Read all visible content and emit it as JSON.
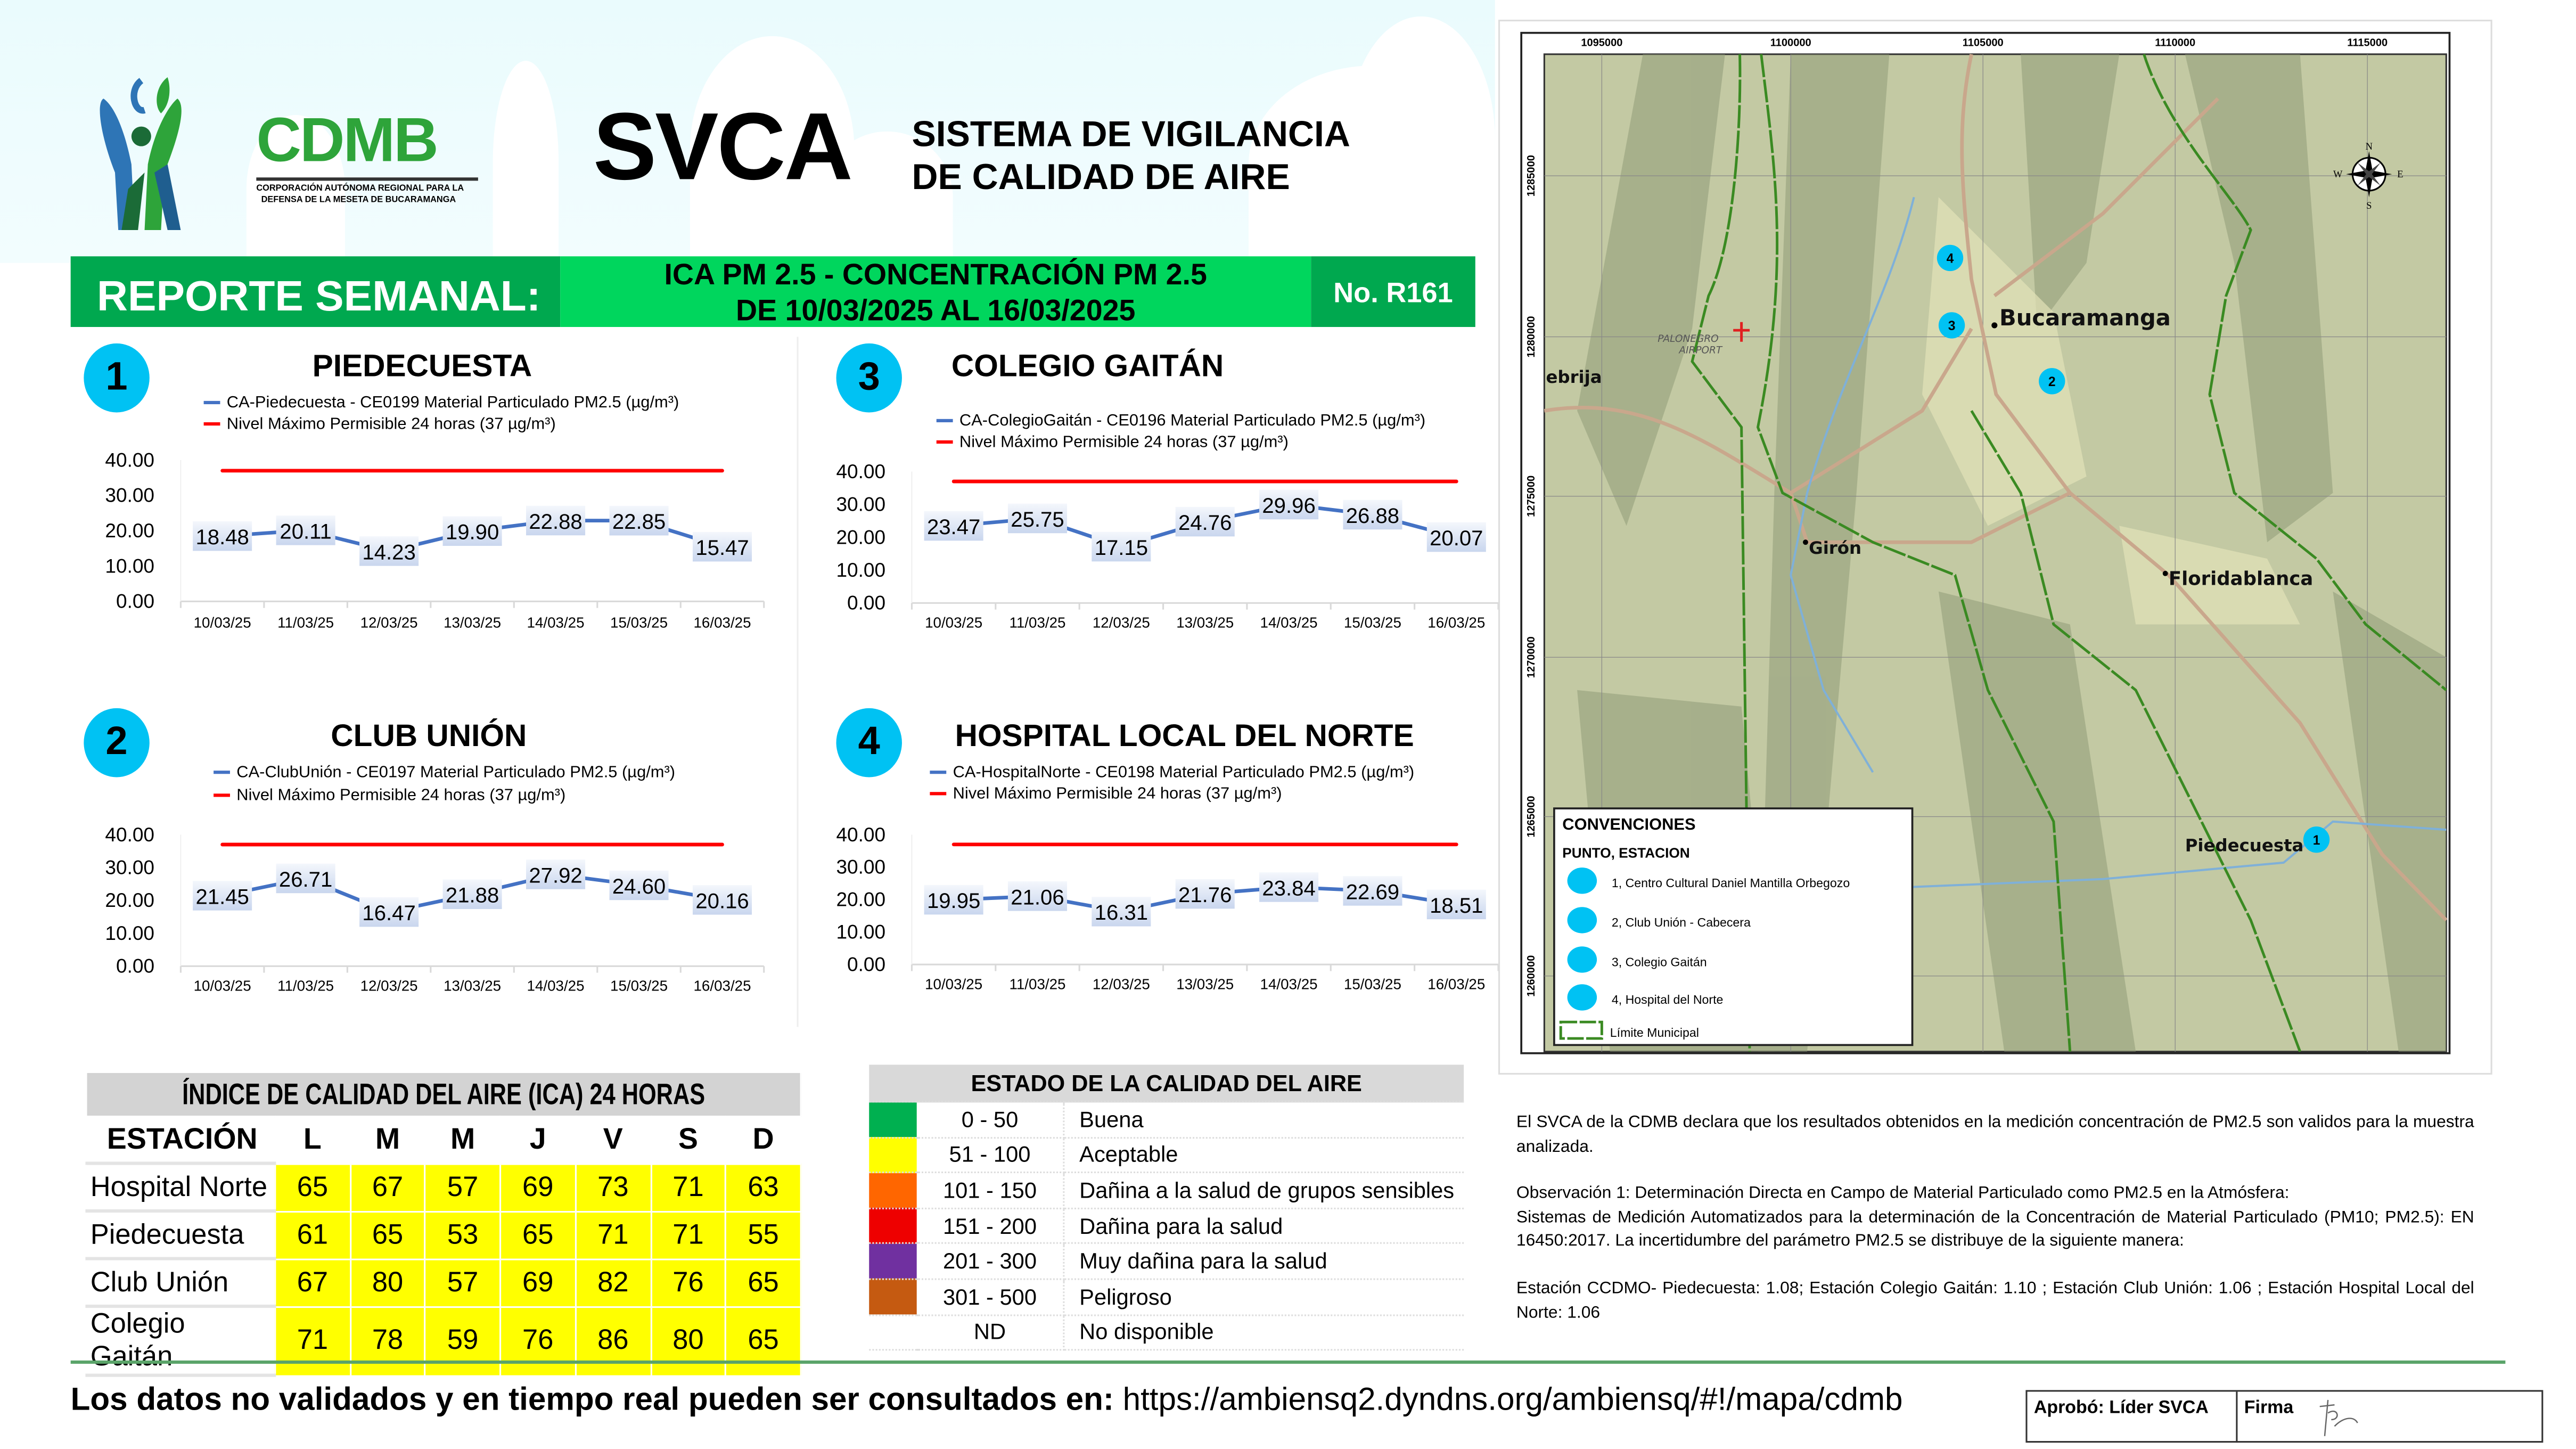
{
  "header": {
    "brand": "CDMB",
    "org_line1": "CORPORACIÓN AUTÓNOMA REGIONAL PARA LA",
    "org_line2": "DEFENSA DE LA MESETA DE BUCARAMANGA",
    "system": "SVCA",
    "subtitle_line1": "SISTEMA DE VIGILANCIA",
    "subtitle_line2": "DE CALIDAD DE AIRE"
  },
  "banner": {
    "label": "REPORTE SEMANAL:",
    "title_line1": "ICA PM 2.5 - CONCENTRACIÓN PM 2.5",
    "title_line2": "DE 10/03/2025 AL 16/03/2025",
    "report_no": "No. R161"
  },
  "chart_data": [
    {
      "type": "line",
      "station_number": "1",
      "title": "PIEDECUESTA",
      "series": [
        {
          "name": "CA-Piedecuesta - CE0199 Material Particulado PM2.5 (µg/m³)",
          "color": "#4472c4",
          "values": [
            18.48,
            20.11,
            14.23,
            19.9,
            22.88,
            22.85,
            15.47
          ]
        },
        {
          "name": "Nivel Máximo Permisible 24 horas (37 µg/m³)",
          "color": "#ff0000",
          "values": [
            37,
            37,
            37,
            37,
            37,
            37,
            37
          ]
        }
      ],
      "categories": [
        "10/03/25",
        "11/03/25",
        "12/03/25",
        "13/03/25",
        "14/03/25",
        "15/03/25",
        "16/03/25"
      ],
      "value_labels": [
        "18.48",
        "20.11",
        "14.23",
        "19.90",
        "22.88",
        "22.85",
        "15.47"
      ],
      "ylim": [
        0,
        40
      ],
      "yticks": [
        "0.00",
        "10.00",
        "20.00",
        "30.00",
        "40.00"
      ]
    },
    {
      "type": "line",
      "station_number": "2",
      "title": "CLUB UNIÓN",
      "series": [
        {
          "name": "CA-ClubUnión - CE0197 Material Particulado PM2.5 (µg/m³)",
          "color": "#4472c4",
          "values": [
            21.45,
            26.71,
            16.47,
            21.88,
            27.92,
            24.6,
            20.16
          ]
        },
        {
          "name": "Nivel Máximo Permisible 24 horas (37 µg/m³)",
          "color": "#ff0000",
          "values": [
            37,
            37,
            37,
            37,
            37,
            37,
            37
          ]
        }
      ],
      "categories": [
        "10/03/25",
        "11/03/25",
        "12/03/25",
        "13/03/25",
        "14/03/25",
        "15/03/25",
        "16/03/25"
      ],
      "value_labels": [
        "21.45",
        "26.71",
        "16.47",
        "21.88",
        "27.92",
        "24.60",
        "20.16"
      ],
      "ylim": [
        0,
        40
      ],
      "yticks": [
        "0.00",
        "10.00",
        "20.00",
        "30.00",
        "40.00"
      ]
    },
    {
      "type": "line",
      "station_number": "3",
      "title": "COLEGIO GAITÁN",
      "series": [
        {
          "name": "CA-ColegioGaitán - CE0196 Material Particulado PM2.5 (µg/m³)",
          "color": "#4472c4",
          "values": [
            23.47,
            25.75,
            17.15,
            24.76,
            29.96,
            26.88,
            20.07
          ]
        },
        {
          "name": "Nivel Máximo Permisible 24 horas (37 µg/m³)",
          "color": "#ff0000",
          "values": [
            37,
            37,
            37,
            37,
            37,
            37,
            37
          ]
        }
      ],
      "categories": [
        "10/03/25",
        "11/03/25",
        "12/03/25",
        "13/03/25",
        "14/03/25",
        "15/03/25",
        "16/03/25"
      ],
      "value_labels": [
        "23.47",
        "25.75",
        "17.15",
        "24.76",
        "29.96",
        "26.88",
        "20.07"
      ],
      "ylim": [
        0,
        40
      ],
      "yticks": [
        "0.00",
        "10.00",
        "20.00",
        "30.00",
        "40.00"
      ]
    },
    {
      "type": "line",
      "station_number": "4",
      "title": "HOSPITAL LOCAL DEL NORTE",
      "series": [
        {
          "name": "CA-HospitalNorte - CE0198 Material Particulado PM2.5 (µg/m³)",
          "color": "#4472c4",
          "values": [
            19.95,
            21.06,
            16.31,
            21.76,
            23.84,
            22.69,
            18.51
          ]
        },
        {
          "name": "Nivel Máximo Permisible 24 horas (37 µg/m³)",
          "color": "#ff0000",
          "values": [
            37,
            37,
            37,
            37,
            37,
            37,
            37
          ]
        }
      ],
      "categories": [
        "10/03/25",
        "11/03/25",
        "12/03/25",
        "13/03/25",
        "14/03/25",
        "15/03/25",
        "16/03/25"
      ],
      "value_labels": [
        "19.95",
        "21.06",
        "16.31",
        "21.76",
        "23.84",
        "22.69",
        "18.51"
      ],
      "ylim": [
        0,
        40
      ],
      "yticks": [
        "0.00",
        "10.00",
        "20.00",
        "30.00",
        "40.00"
      ]
    }
  ],
  "ica_table": {
    "title": "ÍNDICE DE CALIDAD DEL AIRE (ICA) 24 HORAS",
    "headers": [
      "ESTACIÓN",
      "L",
      "M",
      "M",
      "J",
      "V",
      "S",
      "D"
    ],
    "rows": [
      {
        "station": "Hospital Norte",
        "values": [
          "65",
          "67",
          "57",
          "69",
          "73",
          "71",
          "63"
        ]
      },
      {
        "station": "Piedecuesta",
        "values": [
          "61",
          "65",
          "53",
          "65",
          "71",
          "71",
          "55"
        ]
      },
      {
        "station": "Club Unión",
        "values": [
          "67",
          "80",
          "57",
          "69",
          "82",
          "76",
          "65"
        ]
      },
      {
        "station": "Colegio Gaitán",
        "values": [
          "71",
          "78",
          "59",
          "76",
          "86",
          "80",
          "65"
        ]
      }
    ],
    "cell_color": "#ffff00"
  },
  "air_quality": {
    "title": "ESTADO DE LA CALIDAD DEL AIRE",
    "rows": [
      {
        "range": "0 - 50",
        "label": "Buena",
        "color": "#00b050"
      },
      {
        "range": "51 - 100",
        "label": "Aceptable",
        "color": "#ffff00"
      },
      {
        "range": "101 - 150",
        "label": "Dañina a la salud de grupos sensibles",
        "color": "#ff6600"
      },
      {
        "range": "151 - 200",
        "label": "Dañina para la salud",
        "color": "#ee0000"
      },
      {
        "range": "201 - 300",
        "label": "Muy dañina para la salud",
        "color": "#7030a0"
      },
      {
        "range": "301 - 500",
        "label": "Peligroso",
        "color": "#c55a11"
      },
      {
        "range": "ND",
        "label": "No disponible",
        "color": "#ffffff"
      }
    ]
  },
  "map": {
    "x_ticks": [
      "1095000",
      "1100000",
      "1105000",
      "1110000",
      "1115000"
    ],
    "y_ticks": [
      "1285000",
      "1280000",
      "1275000",
      "1270000",
      "1265000",
      "1260000"
    ],
    "places": {
      "bucaramanga": "Bucaramanga",
      "giron": "Girón",
      "floridablanca": "Floridablanca",
      "piedecuesta": "Piedecuesta",
      "lebrija": "ebrija",
      "airport1": "PALONEGRO",
      "airport2": "AIRPORT"
    },
    "compass": {
      "n": "N",
      "s": "S",
      "e": "E",
      "w": "W"
    },
    "markers": [
      "1",
      "2",
      "3",
      "4"
    ],
    "legend": {
      "title": "CONVENCIONES",
      "subtitle": "PUNTO, ESTACION",
      "items": [
        "1, Centro Cultural Daniel Mantilla Orbegozo",
        "2, Club Unión - Cabecera",
        "3, Colegio Gaitán",
        "4, Hospital del Norte"
      ],
      "boundary": "Límite Municipal"
    },
    "marker_color": "#00c2f3"
  },
  "notes": {
    "p1": "El SVCA  de la CDMB declara que los resultados obtenidos en la medición concentración de PM2.5 son validos para la muestra  analizada.",
    "p2a": "Observación 1: Determinación Directa en Campo de Material Particulado como PM2.5 en la Atmósfera:",
    "p2b": "Sistemas de Medición Automatizados para la  determinación de la Concentración de Material Particulado (PM10; PM2.5): EN 16450:2017. La incertidumbre del parámetro PM2.5 se distribuye de la siguiente manera:",
    "p3": "Estación CCDMO- Piedecuesta: 1.08; Estación Colegio Gaitán: 1.10 ; Estación Club Unión: 1.06 ; Estación Hospital Local del Norte: 1.06"
  },
  "footer": {
    "text": "Los datos no validados y en tiempo real pueden ser consultados en:",
    "url": "https://ambiensq2.dyndns.org/ambiensq/#!/mapa/cdmb",
    "approved": "Aprobó: Líder SVCA",
    "signature": "Firma"
  },
  "colors": {
    "dark_green": "#00a84f",
    "bright_green": "#00d65d",
    "accent_blue": "#00c2f3"
  }
}
